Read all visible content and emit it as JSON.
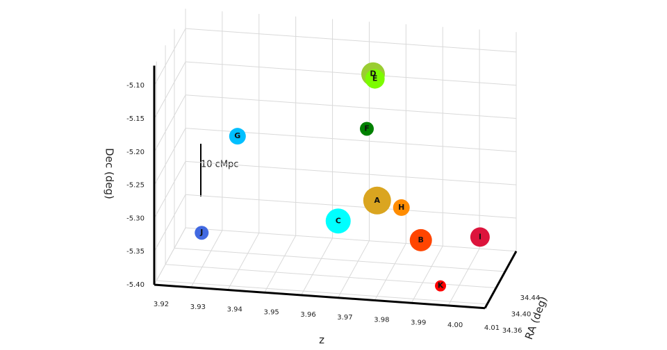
{
  "chart_data": {
    "type": "scatter3d",
    "xlabel": "z",
    "ylabel": "RA (deg)",
    "zlabel": "Dec (deg)",
    "annotation": "10 cMpc",
    "xlim": [
      3.92,
      4.01
    ],
    "xticks": [
      3.92,
      3.93,
      3.94,
      3.95,
      3.96,
      3.97,
      3.98,
      3.99,
      {
        "value": 4,
        "label": "4.00"
      },
      4.01
    ],
    "ylim": [
      34.35,
      34.49
    ],
    "yticks": [
      34.36,
      {
        "value": 34.4,
        "label": "34.40"
      },
      34.44
    ],
    "zlim": [
      -5.4,
      -5.07
    ],
    "zticks": [
      {
        "value": -5.4,
        "label": "-5.40"
      },
      -5.35,
      {
        "value": -5.3,
        "label": "-5.30"
      },
      -5.25,
      {
        "value": -5.2,
        "label": "-5.20"
      },
      -5.15,
      {
        "value": -5.1,
        "label": "-5.10"
      }
    ],
    "grid": true,
    "categories": [
      "A",
      "B",
      "C",
      "D",
      "E",
      "F",
      "G",
      "H",
      "I",
      "J",
      "K"
    ],
    "x": [
      3.9764,
      3.9883,
      3.9658,
      3.9753,
      3.9758,
      3.9736,
      3.9384,
      3.983,
      4.0044,
      3.9261,
      3.9962
    ],
    "y": [
      34.42,
      34.42,
      34.42,
      34.42,
      34.42,
      34.42,
      34.42,
      34.42,
      34.42,
      34.462,
      34.378
    ],
    "z": [
      -5.294,
      -5.349,
      -5.329,
      -5.104,
      -5.111,
      -5.187,
      -5.212,
      -5.302,
      -5.338,
      -5.388,
      -5.389
    ],
    "sizes": [
      20,
      16,
      18,
      17,
      14,
      10,
      12,
      12,
      14,
      10,
      8
    ],
    "colors": [
      "#daa520",
      "#ff4500",
      "#00ffff",
      "#9acd32",
      "#7cfc00",
      "#008000",
      "#00bfff",
      "#ff8c00",
      "#dc143c",
      "#4169e1",
      "#ff0000"
    ]
  }
}
